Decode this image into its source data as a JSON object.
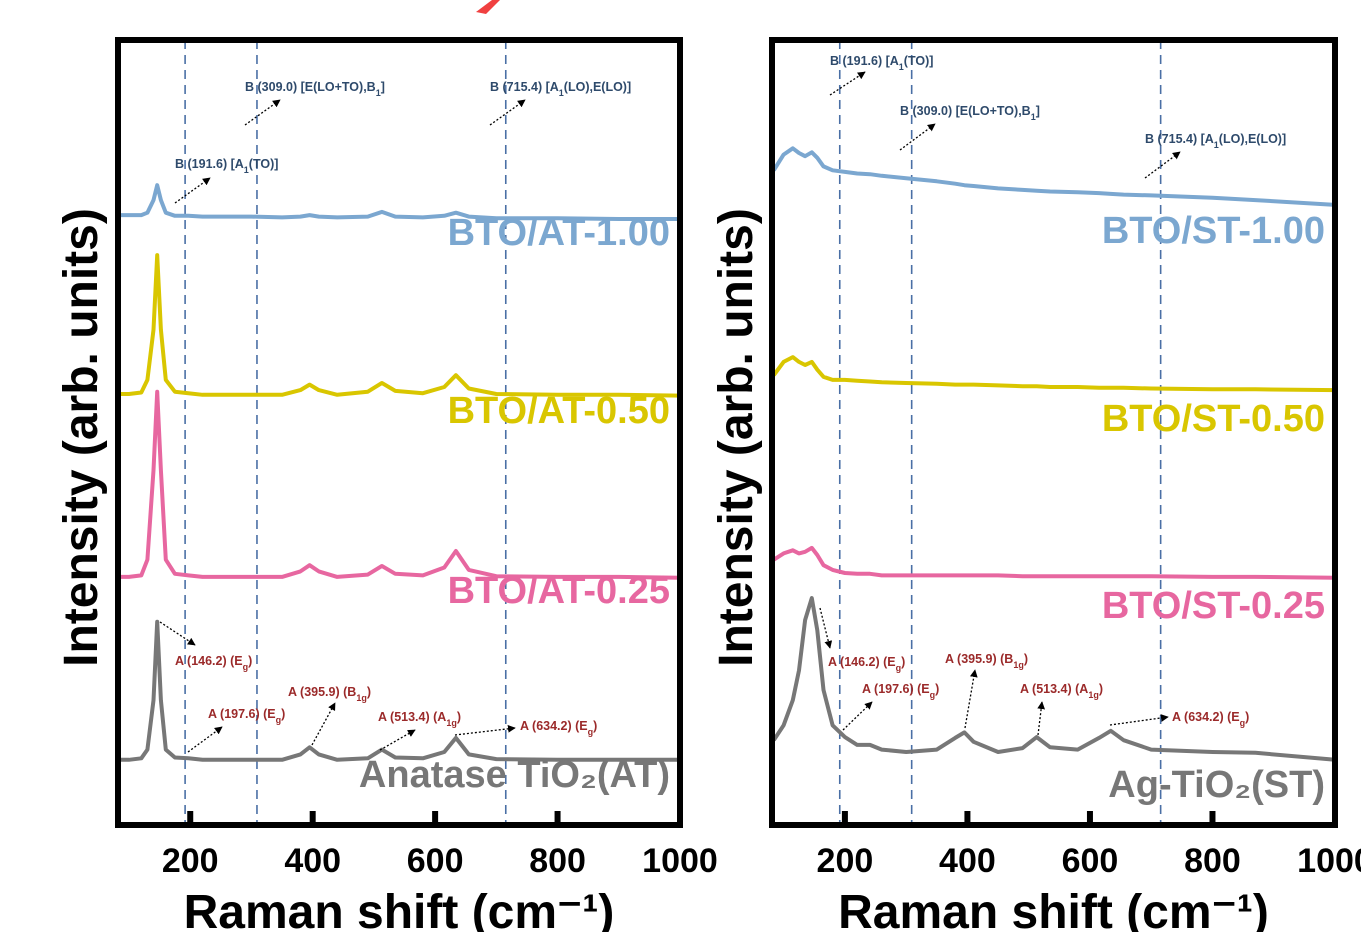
{
  "chart_data": [
    {
      "type": "line",
      "xlabel": "Raman shift (cm⁻¹)",
      "ylabel": "Intensity (arb. units)",
      "xlim": [
        82,
        1000
      ],
      "xticks": [
        200,
        400,
        600,
        800,
        1000
      ],
      "ylim": [
        0,
        100
      ],
      "vlines": [
        191.6,
        309.0,
        715.4
      ],
      "x": [
        82,
        100,
        120,
        130,
        140,
        146,
        152,
        160,
        175,
        197,
        220,
        260,
        300,
        350,
        380,
        395,
        410,
        440,
        490,
        513,
        535,
        580,
        615,
        634,
        655,
        700,
        800,
        900,
        1000
      ],
      "series": [
        {
          "name": "BTO/AT-1.00",
          "color": "#7ba7d0",
          "values": [
            77.7,
            77.7,
            77.7,
            78.0,
            79.6,
            81.5,
            79.6,
            78.0,
            77.6,
            77.6,
            77.5,
            77.5,
            77.5,
            77.4,
            77.5,
            77.7,
            77.5,
            77.4,
            77.5,
            78.1,
            77.5,
            77.4,
            77.6,
            78.0,
            77.5,
            77.3,
            77.3,
            77.2,
            77.2
          ]
        },
        {
          "name": "BTO/AT-0.50",
          "color": "#d9c600",
          "values": [
            54.9,
            54.9,
            55.1,
            56.7,
            63.1,
            72.6,
            63.1,
            56.7,
            55.2,
            55.0,
            54.8,
            54.8,
            54.8,
            54.8,
            55.4,
            56.1,
            55.4,
            54.8,
            55.2,
            56.3,
            55.3,
            55.0,
            55.8,
            57.3,
            55.6,
            54.9,
            54.8,
            54.8,
            54.7
          ]
        },
        {
          "name": "BTO/AT-0.25",
          "color": "#e767a0",
          "values": [
            31.6,
            31.6,
            31.8,
            33.8,
            45.2,
            55.2,
            45.2,
            33.8,
            32.0,
            31.8,
            31.6,
            31.6,
            31.6,
            31.6,
            32.3,
            33.1,
            32.3,
            31.6,
            31.9,
            33.0,
            32.0,
            31.8,
            32.8,
            34.9,
            32.5,
            31.7,
            31.6,
            31.6,
            31.5
          ]
        },
        {
          "name": "Anatase TiO₂(AT)",
          "color": "#777777",
          "values": [
            8.3,
            8.3,
            8.5,
            9.6,
            15.9,
            25.9,
            15.9,
            9.6,
            8.6,
            8.5,
            8.3,
            8.3,
            8.3,
            8.3,
            9.0,
            9.9,
            9.0,
            8.3,
            8.5,
            9.6,
            8.6,
            8.5,
            9.3,
            11.1,
            9.0,
            8.4,
            8.3,
            8.3,
            8.3
          ]
        }
      ],
      "annotations": [
        {
          "parts": [
            "B (191.6) [A",
            "1",
            "(TO)]"
          ],
          "color": "#2e4a6b"
        },
        {
          "parts": [
            "B (309.0) [E(LO+TO),B",
            "1",
            "]"
          ],
          "color": "#2e4a6b"
        },
        {
          "parts": [
            "B (715.4) [A",
            "1",
            "(LO),E(LO)]"
          ],
          "color": "#2e4a6b"
        },
        {
          "parts": [
            "A (146.2) (E",
            "g",
            ")"
          ],
          "color": "#9b2a2a"
        },
        {
          "parts": [
            "A (197.6) (E",
            "g",
            ")"
          ],
          "color": "#9b2a2a"
        },
        {
          "parts": [
            "A (395.9) (B",
            "1g",
            ")"
          ],
          "color": "#9b2a2a"
        },
        {
          "parts": [
            "A (513.4) (A",
            "1g",
            ")"
          ],
          "color": "#9b2a2a"
        },
        {
          "parts": [
            "A (634.2) (E",
            "g",
            ")"
          ],
          "color": "#9b2a2a"
        }
      ]
    },
    {
      "type": "line",
      "xlabel": "Raman shift (cm⁻¹)",
      "ylabel": "Intensity (arb. units)",
      "xlim": [
        81,
        1000
      ],
      "xticks": [
        200,
        400,
        600,
        800,
        1000
      ],
      "ylim": [
        0,
        100
      ],
      "vlines": [
        191.6,
        309.0,
        715.4
      ],
      "x": [
        84,
        100,
        115,
        125,
        135,
        146,
        155,
        165,
        180,
        200,
        220,
        241,
        260,
        300,
        350,
        380,
        395,
        410,
        450,
        490,
        513,
        535,
        580,
        615,
        634,
        655,
        700,
        800,
        870,
        1000
      ],
      "series": [
        {
          "name": "BTO/ST-1.00",
          "color": "#7ba7d0",
          "values": [
            83.4,
            85.4,
            86.2,
            85.6,
            85.2,
            85.7,
            85.0,
            83.9,
            83.4,
            83.2,
            83.0,
            82.9,
            82.7,
            82.4,
            82.0,
            81.7,
            81.5,
            81.4,
            81.1,
            80.9,
            80.8,
            80.7,
            80.6,
            80.5,
            80.4,
            80.3,
            80.2,
            79.9,
            79.6,
            79.0
          ]
        },
        {
          "name": "BTO/ST-0.50",
          "color": "#d9c600",
          "values": [
            57.3,
            59.0,
            59.6,
            59.0,
            58.6,
            59.0,
            58.0,
            57.1,
            56.7,
            56.7,
            56.6,
            56.5,
            56.4,
            56.3,
            56.2,
            56.1,
            56.1,
            56.1,
            56.0,
            55.9,
            55.9,
            55.8,
            55.8,
            55.7,
            55.7,
            55.7,
            55.6,
            55.5,
            55.5,
            55.4
          ]
        },
        {
          "name": "BTO/ST-0.25",
          "color": "#e767a0",
          "values": [
            33.8,
            34.6,
            35.0,
            34.6,
            34.8,
            35.3,
            34.4,
            33.1,
            32.5,
            32.1,
            32.0,
            32.0,
            31.8,
            31.8,
            31.8,
            31.8,
            31.8,
            31.8,
            31.8,
            31.7,
            31.7,
            31.7,
            31.7,
            31.7,
            31.7,
            31.7,
            31.7,
            31.6,
            31.6,
            31.5
          ]
        },
        {
          "name": "Ag-TiO₂(ST)",
          "color": "#777777",
          "values": [
            10.8,
            12.7,
            15.9,
            19.7,
            26.1,
            28.9,
            24.8,
            17.2,
            12.7,
            11.2,
            10.2,
            10.2,
            9.6,
            9.3,
            9.6,
            11.1,
            11.8,
            10.6,
            9.3,
            9.8,
            11.2,
            9.9,
            9.6,
            11.1,
            12.0,
            10.8,
            9.6,
            9.3,
            9.2,
            8.3
          ]
        }
      ],
      "annotations": [
        {
          "parts": [
            "B (191.6) [A",
            "1",
            "(TO)]"
          ],
          "color": "#2e4a6b"
        },
        {
          "parts": [
            "B (309.0) [E(LO+TO),B",
            "1",
            "]"
          ],
          "color": "#2e4a6b"
        },
        {
          "parts": [
            "B (715.4) [A",
            "1",
            "(LO),E(LO)]"
          ],
          "color": "#2e4a6b"
        },
        {
          "parts": [
            "A (146.2) (E",
            "g",
            ")"
          ],
          "color": "#9b2a2a"
        },
        {
          "parts": [
            "A (197.6) (E",
            "g",
            ")"
          ],
          "color": "#9b2a2a"
        },
        {
          "parts": [
            "A (395.9) (B",
            "1g",
            ")"
          ],
          "color": "#9b2a2a"
        },
        {
          "parts": [
            "A (513.4) (A",
            "1g",
            ")"
          ],
          "color": "#9b2a2a"
        },
        {
          "parts": [
            "A (634.2) (E",
            "g",
            ")"
          ],
          "color": "#9b2a2a"
        }
      ]
    }
  ]
}
